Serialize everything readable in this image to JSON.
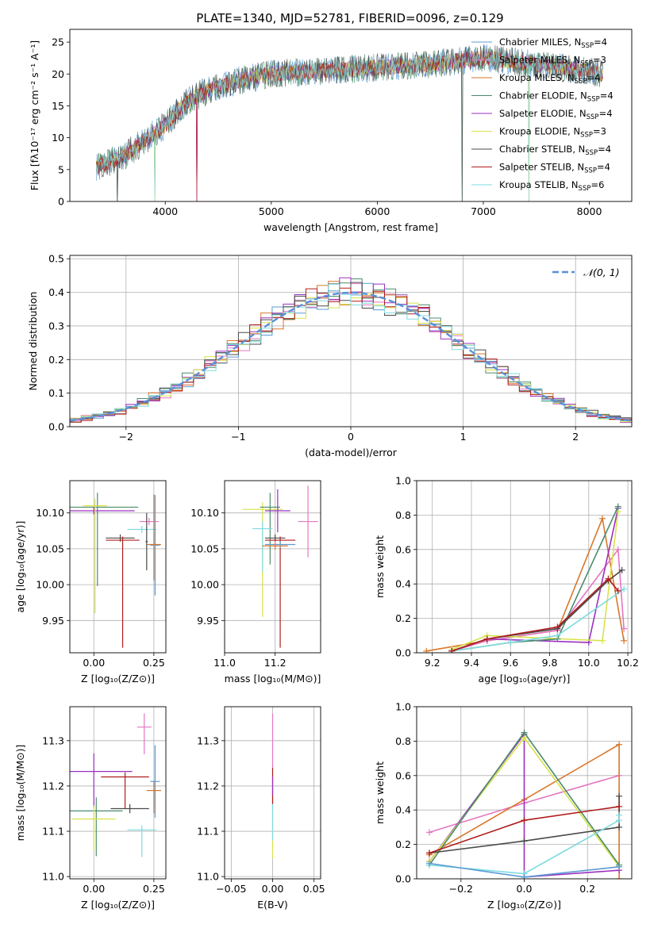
{
  "title": "PLATE=1340, MJD=52781, FIBERID=0096, z=0.129",
  "colors": {
    "chabrier_miles": "#5b9bd5",
    "salpeter_miles": "#e377c2",
    "kroupa_miles": "#d9772b",
    "chabrier_elodie": "#4c8c6c",
    "salpeter_elodie": "#9b30c0",
    "kroupa_elodie": "#d8e24a",
    "chabrier_stelib": "#4a4a4a",
    "salpeter_stelib": "#b01c1c",
    "kroupa_stelib": "#7fdbe0",
    "normal": "#5b8fd8",
    "grid": "#b0b0b0"
  },
  "chart_data": [
    {
      "id": "spectrum",
      "type": "line",
      "xlabel": "wavelength [Angstrom, rest frame]",
      "ylabel": "Flux [fλ10⁻¹⁷ erg cm⁻² s⁻¹ A⁻¹]",
      "xlim": [
        3100,
        8400
      ],
      "ylim": [
        0,
        27
      ],
      "xticks": [
        4000,
        5000,
        6000,
        7000,
        8000
      ],
      "yticks": [
        0,
        5,
        10,
        15,
        20,
        25
      ],
      "grid": false,
      "legend_position": "top-right",
      "continuum": [
        [
          3350,
          5.5
        ],
        [
          3600,
          7.0
        ],
        [
          3800,
          9.5
        ],
        [
          4000,
          12.0
        ],
        [
          4200,
          15.5
        ],
        [
          4400,
          17.5
        ],
        [
          4700,
          19.0
        ],
        [
          5000,
          20.0
        ],
        [
          5500,
          20.5
        ],
        [
          6000,
          21.0
        ],
        [
          6500,
          21.5
        ],
        [
          7000,
          22.5
        ],
        [
          7500,
          21.5
        ],
        [
          8000,
          20.5
        ],
        [
          8130,
          20.0
        ]
      ],
      "dropouts": [
        [
          3550,
          0
        ],
        [
          3900,
          0
        ],
        [
          4300,
          0
        ],
        [
          6800,
          0
        ],
        [
          7430,
          0
        ]
      ],
      "legend": [
        {
          "key": "chabrier_miles",
          "prefix": "Chabrier MILES, N",
          "sub": "SSP",
          "suffix": "=4"
        },
        {
          "key": "salpeter_miles",
          "prefix": "Salpeter MILES, N",
          "sub": "SSP",
          "suffix": "=3"
        },
        {
          "key": "kroupa_miles",
          "prefix": "Kroupa MILES, N",
          "sub": "SSP",
          "suffix": "=4"
        },
        {
          "key": "chabrier_elodie",
          "prefix": "Chabrier ELODIE, N",
          "sub": "SSP",
          "suffix": "=4"
        },
        {
          "key": "salpeter_elodie",
          "prefix": "Salpeter ELODIE, N",
          "sub": "SSP",
          "suffix": "=4"
        },
        {
          "key": "kroupa_elodie",
          "prefix": "Kroupa ELODIE, N",
          "sub": "SSP",
          "suffix": "=3"
        },
        {
          "key": "chabrier_stelib",
          "prefix": "Chabrier STELIB, N",
          "sub": "SSP",
          "suffix": "=4"
        },
        {
          "key": "salpeter_stelib",
          "prefix": "Salpeter STELIB, N",
          "sub": "SSP",
          "suffix": "=4"
        },
        {
          "key": "kroupa_stelib",
          "prefix": "Kroupa STELIB, N",
          "sub": "SSP",
          "suffix": "=6"
        }
      ]
    },
    {
      "id": "residuals",
      "type": "line",
      "xlabel": "(data-model)/error",
      "ylabel": "Normed distribution",
      "xlim": [
        -2.5,
        2.5
      ],
      "ylim": [
        0,
        0.51
      ],
      "xticks": [
        -2,
        -1,
        0,
        1,
        2
      ],
      "xtick_labels": [
        "−2",
        "−1",
        "0",
        "1",
        "2"
      ],
      "yticks": [
        0.0,
        0.1,
        0.2,
        0.3,
        0.4,
        0.5
      ],
      "grid": true,
      "legend_position": "top-right",
      "legend_label": "𝒩(0, 1)",
      "bin_width": 0.1
    },
    {
      "id": "age_vs_Z",
      "type": "scatter",
      "xlabel": "Z [log₁₀(Z/Z⊙)]",
      "ylabel": "age  [log₁₀(age/yr)]",
      "xlim": [
        -0.1,
        0.3
      ],
      "ylim": [
        9.905,
        10.145
      ],
      "xticks": [
        0.0,
        0.25
      ],
      "xtick_labels": [
        "0.00",
        "0.25"
      ],
      "yticks": [
        9.95,
        10.0,
        10.05,
        10.1
      ],
      "ytick_labels": [
        "9.95",
        "10.00",
        "10.05",
        "10.10"
      ],
      "grid": true,
      "points": [
        {
          "key": "chabrier_elodie",
          "x": 0.015,
          "y": 10.108,
          "xerr": 0.17,
          "yerr": [
            0.11,
            0.02
          ]
        },
        {
          "key": "salpeter_elodie",
          "x": 0.0,
          "y": 10.103,
          "xerr": 0.17,
          "yerr": [
            0.005,
            0.005
          ]
        },
        {
          "key": "kroupa_elodie",
          "x": 0.005,
          "y": 10.11,
          "xerr": 0.05,
          "yerr": [
            0.15,
            0.01
          ]
        },
        {
          "key": "chabrier_stelib",
          "x": 0.11,
          "y": 10.065,
          "xerr": 0.06,
          "yerr": [
            0.005,
            0.005
          ]
        },
        {
          "key": "salpeter_stelib",
          "x": 0.12,
          "y": 10.062,
          "xerr": 0.07,
          "yerr": [
            0.15,
            0.005
          ]
        },
        {
          "key": "kroupa_stelib",
          "x": 0.2,
          "y": 10.077,
          "xerr": 0.06,
          "yerr": [
            0.005,
            0.005
          ]
        },
        {
          "key": "salpeter_miles",
          "x": 0.23,
          "y": 10.088,
          "xerr": 0.04,
          "yerr": [
            0.005,
            0.005
          ]
        },
        {
          "key": "chabrier_miles",
          "x": 0.255,
          "y": 10.055,
          "xerr": 0.02,
          "yerr": [
            0.07,
            0.07
          ]
        },
        {
          "key": "kroupa_miles",
          "x": 0.25,
          "y": 10.056,
          "xerr": 0.03,
          "yerr": [
            0.05,
            0.07
          ]
        },
        {
          "key": "chabrier_stelib",
          "x": 0.22,
          "y": 10.06,
          "xerr": 0.005,
          "yerr": [
            0.04,
            0.04
          ]
        }
      ]
    },
    {
      "id": "age_vs_mass",
      "type": "scatter",
      "xlabel": "mass [log₁₀(M/M⊙)]",
      "xlim": [
        11.0,
        11.38
      ],
      "ylim": [
        9.905,
        10.145
      ],
      "xticks": [
        11.0,
        11.2
      ],
      "xtick_labels": [
        "11.0",
        "11.2"
      ],
      "yticks": [
        9.95,
        10.0,
        10.05,
        10.1
      ],
      "ytick_labels": [
        "9.95",
        "10.00",
        "10.05",
        "10.10"
      ],
      "grid": true,
      "points": [
        {
          "key": "kroupa_elodie",
          "x": 11.15,
          "y": 10.105,
          "xerr": 0.08,
          "yerr": [
            0.15,
            0.01
          ]
        },
        {
          "key": "chabrier_elodie",
          "x": 11.18,
          "y": 10.108,
          "xerr": 0.04,
          "yerr": [
            0.08,
            0.02
          ]
        },
        {
          "key": "salpeter_elodie",
          "x": 11.21,
          "y": 10.103,
          "xerr": 0.05,
          "yerr": [
            0.03,
            0.03
          ]
        },
        {
          "key": "kroupa_stelib",
          "x": 11.15,
          "y": 10.078,
          "xerr": 0.04,
          "yerr": [
            0.06,
            0.01
          ]
        },
        {
          "key": "chabrier_stelib",
          "x": 11.2,
          "y": 10.065,
          "xerr": 0.04,
          "yerr": [
            0.005,
            0.005
          ]
        },
        {
          "key": "salpeter_stelib",
          "x": 11.22,
          "y": 10.062,
          "xerr": 0.06,
          "yerr": [
            0.15,
            0.005
          ]
        },
        {
          "key": "salpeter_miles",
          "x": 11.33,
          "y": 10.088,
          "xerr": 0.04,
          "yerr": [
            0.05,
            0.05
          ]
        },
        {
          "key": "chabrier_miles",
          "x": 11.22,
          "y": 10.056,
          "xerr": 0.06,
          "yerr": [
            0.005,
            0.005
          ]
        },
        {
          "key": "kroupa_miles",
          "x": 11.2,
          "y": 10.054,
          "xerr": 0.05,
          "yerr": [
            0.005,
            0.005
          ]
        }
      ]
    },
    {
      "id": "mass_weight_vs_age",
      "type": "line",
      "xlabel": "age  [log₁₀(age/yr)]",
      "ylabel": "mass weight",
      "xlim": [
        9.12,
        10.22
      ],
      "ylim": [
        0.0,
        1.0
      ],
      "xticks": [
        9.2,
        9.4,
        9.6,
        9.8,
        10.0,
        10.2
      ],
      "xtick_labels": [
        "9.2",
        "9.4",
        "9.6",
        "9.8",
        "10.0",
        "10.2"
      ],
      "yticks": [
        0.0,
        0.2,
        0.4,
        0.6,
        0.8,
        1.0
      ],
      "ytick_labels": [
        "0.0",
        "0.2",
        "0.4",
        "0.6",
        "0.8",
        "1.0"
      ],
      "grid": true,
      "series": [
        {
          "key": "kroupa_miles",
          "x": [
            9.17,
            9.48,
            9.84,
            10.07,
            10.18
          ],
          "y": [
            0.01,
            0.07,
            0.13,
            0.78,
            0.07
          ]
        },
        {
          "key": "salpeter_miles",
          "x": [
            9.3,
            9.48,
            9.84,
            10.15,
            10.18
          ],
          "y": [
            0.01,
            0.07,
            0.13,
            0.6,
            0.14
          ]
        },
        {
          "key": "salpeter_elodie",
          "x": [
            9.3,
            9.48,
            10.0,
            10.15
          ],
          "y": [
            0.01,
            0.08,
            0.06,
            0.84
          ]
        },
        {
          "key": "kroupa_elodie",
          "x": [
            9.3,
            9.48,
            10.07,
            10.15
          ],
          "y": [
            0.02,
            0.1,
            0.07,
            0.82
          ]
        },
        {
          "key": "chabrier_elodie",
          "x": [
            9.3,
            9.6,
            9.84,
            10.15
          ],
          "y": [
            0.01,
            0.06,
            0.08,
            0.85
          ]
        },
        {
          "key": "kroupa_stelib",
          "x": [
            9.3,
            9.6,
            9.84,
            10.18
          ],
          "y": [
            0.01,
            0.06,
            0.1,
            0.37
          ]
        },
        {
          "key": "chabrier_stelib",
          "x": [
            9.3,
            9.48,
            9.84,
            10.1,
            10.17
          ],
          "y": [
            0.01,
            0.08,
            0.14,
            0.42,
            0.48
          ]
        },
        {
          "key": "salpeter_stelib",
          "x": [
            9.3,
            9.48,
            9.84,
            10.1,
            10.15
          ],
          "y": [
            0.01,
            0.08,
            0.15,
            0.43,
            0.36
          ]
        }
      ]
    },
    {
      "id": "mass_vs_Z",
      "type": "scatter",
      "xlabel": "Z [log₁₀(Z/Z⊙)]",
      "ylabel": "mass [log₁₀(M/M⊙)]",
      "xlim": [
        -0.1,
        0.3
      ],
      "ylim": [
        10.995,
        11.375
      ],
      "xticks": [
        0.0,
        0.25
      ],
      "xtick_labels": [
        "0.00",
        "0.25"
      ],
      "yticks": [
        11.0,
        11.1,
        11.2,
        11.3
      ],
      "ytick_labels": [
        "11.0",
        "11.1",
        "11.2",
        "11.3"
      ],
      "grid": true,
      "points": [
        {
          "key": "salpeter_elodie",
          "x": 0.0,
          "y": 11.232,
          "xerr": 0.16,
          "yerr": [
            0.08,
            0.04
          ]
        },
        {
          "key": "chabrier_elodie",
          "x": 0.01,
          "y": 11.145,
          "xerr": 0.11,
          "yerr": [
            0.1,
            0.03
          ]
        },
        {
          "key": "kroupa_elodie",
          "x": 0.0,
          "y": 11.127,
          "xerr": 0.09,
          "yerr": [
            0.07,
            0.03
          ]
        },
        {
          "key": "salpeter_stelib",
          "x": 0.13,
          "y": 11.22,
          "xerr": 0.1,
          "yerr": [
            0.07,
            0.01
          ]
        },
        {
          "key": "chabrier_stelib",
          "x": 0.15,
          "y": 11.15,
          "xerr": 0.08,
          "yerr": [
            0.01,
            0.01
          ]
        },
        {
          "key": "kroupa_stelib",
          "x": 0.2,
          "y": 11.103,
          "xerr": 0.06,
          "yerr": [
            0.06,
            0.01
          ]
        },
        {
          "key": "salpeter_miles",
          "x": 0.21,
          "y": 11.33,
          "xerr": 0.03,
          "yerr": [
            0.06,
            0.03
          ]
        },
        {
          "key": "chabrier_miles",
          "x": 0.255,
          "y": 11.21,
          "xerr": 0.02,
          "yerr": [
            0.08,
            0.08
          ]
        },
        {
          "key": "kroupa_miles",
          "x": 0.25,
          "y": 11.19,
          "xerr": 0.03,
          "yerr": [
            0.05,
            0.02
          ]
        }
      ]
    },
    {
      "id": "mass_vs_ebv",
      "type": "scatter",
      "xlabel": "E(B-V)",
      "xlim": [
        -0.058,
        0.058
      ],
      "ylim": [
        10.995,
        11.375
      ],
      "xticks": [
        -0.05,
        0.0,
        0.05
      ],
      "xtick_labels": [
        "−0.05",
        "0.00",
        "0.05"
      ],
      "yticks": [
        11.0,
        11.1,
        11.2,
        11.3
      ],
      "ytick_labels": [
        "11.0",
        "11.1",
        "11.2",
        "11.3"
      ],
      "grid": true,
      "points": [
        {
          "key": "salpeter_miles",
          "x": 0.0,
          "y": 11.3,
          "xerr": 0.0,
          "yerr": [
            0.06,
            0.06
          ]
        },
        {
          "key": "kroupa_elodie",
          "x": 0.0,
          "y": 11.1,
          "xerr": 0.0,
          "yerr": [
            0.06,
            0.06
          ]
        },
        {
          "key": "kroupa_stelib",
          "x": 0.0,
          "y": 11.14,
          "xerr": 0.0,
          "yerr": [
            0.06,
            0.06
          ]
        },
        {
          "key": "salpeter_stelib",
          "x": 0.0,
          "y": 11.2,
          "xerr": 0.0,
          "yerr": [
            0.04,
            0.04
          ]
        },
        {
          "key": "salpeter_elodie",
          "x": 0.0,
          "y": 11.2,
          "xerr": 0.0,
          "yerr": [
            0.02,
            0.02
          ]
        }
      ]
    },
    {
      "id": "mass_weight_vs_Z",
      "type": "line",
      "xlabel": "Z [log₁₀(Z/Z⊙)]",
      "ylabel": "mass weight",
      "xlim": [
        -0.34,
        0.34
      ],
      "ylim": [
        0.0,
        1.0
      ],
      "xticks": [
        -0.2,
        0.0,
        0.2
      ],
      "xtick_labels": [
        "−0.2",
        "0.0",
        "0.2"
      ],
      "yticks": [
        0.0,
        0.2,
        0.4,
        0.6,
        0.8,
        1.0
      ],
      "ytick_labels": [
        "0.0",
        "0.2",
        "0.4",
        "0.6",
        "0.8",
        "1.0"
      ],
      "grid": true,
      "series": [
        {
          "key": "salpeter_miles",
          "x": [
            -0.3,
            0.0,
            0.3
          ],
          "y": [
            0.27,
            0.44,
            0.6
          ]
        },
        {
          "key": "kroupa_miles",
          "x": [
            -0.3,
            0.0,
            0.3,
            0.3
          ],
          "y": [
            0.14,
            0.46,
            0.78,
            0.0
          ]
        },
        {
          "key": "salpeter_elodie",
          "x": [
            -0.3,
            0.0,
            0.0,
            0.3
          ],
          "y": [
            0.1,
            0.84,
            0.01,
            0.05
          ]
        },
        {
          "key": "kroupa_elodie",
          "x": [
            -0.3,
            0.0,
            0.3
          ],
          "y": [
            0.1,
            0.82,
            0.07
          ]
        },
        {
          "key": "chabrier_elodie",
          "x": [
            -0.3,
            0.0,
            0.3
          ],
          "y": [
            0.08,
            0.85,
            0.08
          ]
        },
        {
          "key": "chabrier_stelib",
          "x": [
            -0.3,
            0.0,
            0.3,
            0.3
          ],
          "y": [
            0.15,
            0.22,
            0.3,
            0.48
          ]
        },
        {
          "key": "salpeter_stelib",
          "x": [
            -0.3,
            0.0,
            0.3
          ],
          "y": [
            0.15,
            0.34,
            0.42
          ]
        },
        {
          "key": "kroupa_stelib",
          "x": [
            -0.3,
            0.0,
            0.3,
            0.3
          ],
          "y": [
            0.08,
            0.03,
            0.34,
            0.37
          ]
        },
        {
          "key": "chabrier_miles",
          "x": [
            -0.3,
            0.0,
            0.3
          ],
          "y": [
            0.09,
            0.01,
            0.07
          ]
        }
      ]
    }
  ]
}
